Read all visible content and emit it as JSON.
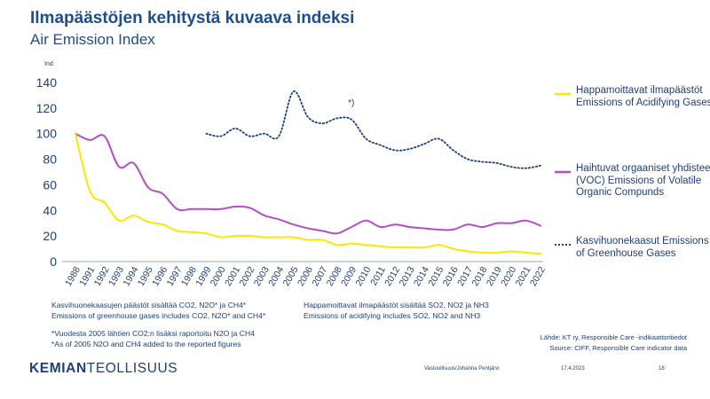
{
  "header": {
    "title": "Ilmapäästöjen kehitystä kuvaava indeksi",
    "subtitle": "Air Emission Index"
  },
  "chart_data": {
    "type": "line",
    "ylabel": "Ind",
    "ylim": [
      0,
      140
    ],
    "yticks": [
      0,
      20,
      40,
      60,
      80,
      100,
      120,
      140
    ],
    "grid": false,
    "legend_placement": "right",
    "x": [
      "1988",
      "1991",
      "1992",
      "1993",
      "1994",
      "1995",
      "1996",
      "1997",
      "1998",
      "1999",
      "2000",
      "2001",
      "2002",
      "2003",
      "2004",
      "2005",
      "2006",
      "2007",
      "2008",
      "2009",
      "2010",
      "2011",
      "2012",
      "2013",
      "2014",
      "2015",
      "2016",
      "2017",
      "2018",
      "2019",
      "2020",
      "2021",
      "2022"
    ],
    "series": [
      {
        "name": "Happamoittavat ilmapäästöt Emissions of Acidifying Gases",
        "color": "#ffe600",
        "style": "solid",
        "values": [
          100,
          55,
          46,
          32,
          36,
          31,
          29,
          24,
          23,
          22,
          19,
          20,
          20,
          19,
          19,
          19,
          17,
          17,
          13,
          14,
          13,
          12,
          11,
          11,
          11,
          13,
          10,
          8,
          7,
          7,
          8,
          7,
          6
        ]
      },
      {
        "name": "Haihtuvat orgaaniset yhdisteet (VOC) Emissions of Volatile Organic Compunds",
        "color": "#b44fc2",
        "style": "solid",
        "values": [
          100,
          95,
          98,
          74,
          77,
          58,
          53,
          41,
          41,
          41,
          41,
          43,
          42,
          36,
          33,
          29,
          26,
          24,
          22,
          27,
          32,
          27,
          29,
          27,
          26,
          25,
          25,
          29,
          27,
          30,
          30,
          32,
          28
        ]
      },
      {
        "name": "Kasvihuonekaasut Emissions of Greenhouse Gases",
        "color": "#1f3f7a",
        "style": "dotted",
        "values": [
          null,
          null,
          null,
          null,
          null,
          null,
          null,
          null,
          null,
          100,
          98,
          104,
          98,
          100,
          98,
          133,
          113,
          108,
          112,
          111,
          96,
          91,
          87,
          88,
          92,
          96,
          87,
          80,
          78,
          77,
          74,
          73,
          75
        ]
      }
    ],
    "annotations": [
      {
        "text": "*)",
        "x": "2009",
        "y": 122
      }
    ]
  },
  "notes": {
    "ghg_fi": "Kasvihuonekaasujen päästöt sisältää CO2, N2O* ja CH4*",
    "ghg_en": "Emissions of greenhouse gases includes CO2, N2O* and CH4*",
    "acid_fi": "Happamoittavat ilmapäästöt sisältää SO2, NO2 ja NH3",
    "acid_en": "Emissions of acidifying includes SO2, NO2 and NH3",
    "foot_fi": "*Vuodesta 2005 lähtien CO2:n lisäksi raportoitu N2O ja CH4",
    "foot_en": "*As of 2005 N2O and CH4 added to the reported figures",
    "source_fi": "Lähde: KT ry, Responsible Care -indikaattoritiedot",
    "source_en": "Source: CIFF, Responsible Care indicator data"
  },
  "footer": {
    "brand_bold": "KEMIAN",
    "brand_light": "TEOLLISUUS",
    "author": "Vastuullisuus/Johanna Pentjärvi",
    "date": "17.4.2023",
    "page": "18"
  }
}
